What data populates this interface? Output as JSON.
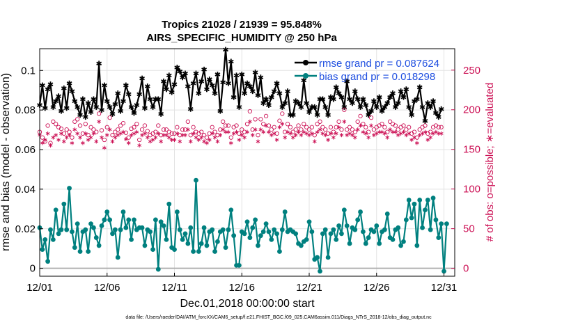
{
  "chart_data": {
    "type": "line",
    "title": "Tropics 21028 / 21939 = 95.848%",
    "subtitle": "AIRS_SPECIFIC_HUMIDITY @ 250 hPa",
    "xlabel": "Dec.01,2018 00:00:00 start",
    "ylabel": "rmse and bias (model - observation)",
    "ylabel_right": "# of obs: o=possible; ∗=evaluated",
    "xlim": [
      0,
      30.8
    ],
    "ylim": [
      -0.004,
      0.111
    ],
    "ylim_right": [
      -10,
      277
    ],
    "x_ticks": [
      0,
      5,
      10,
      15,
      20,
      25,
      30
    ],
    "x_tick_labels": [
      "12/01",
      "12/06",
      "12/11",
      "12/16",
      "12/21",
      "12/26",
      "12/31"
    ],
    "y_ticks": [
      0,
      0.02,
      0.04,
      0.06,
      0.08,
      0.1
    ],
    "y_tick_labels": [
      "0",
      "0.02",
      "0.04",
      "0.06",
      "0.08",
      "0.1"
    ],
    "y_ticks_right": [
      0,
      50,
      100,
      150,
      200,
      250
    ],
    "y_tick_labels_right": [
      "0",
      "50",
      "100",
      "150",
      "200",
      "250"
    ],
    "legend": [
      "rmse grand pr = 0.087624",
      "bias grand pr = 0.018298"
    ],
    "series": [
      {
        "name": "rmse",
        "color": "#000000",
        "values": [
          0.0825,
          0.0925,
          0.081,
          0.0905,
          0.093,
          0.0815,
          0.0845,
          0.087,
          0.0795,
          0.091,
          0.081,
          0.0935,
          0.0895,
          0.0845,
          0.0815,
          0.0775,
          0.0855,
          0.0765,
          0.0835,
          0.079,
          0.0855,
          0.0815,
          0.1035,
          0.08,
          0.0925,
          0.0845,
          0.0815,
          0.078,
          0.083,
          0.0885,
          0.0795,
          0.0845,
          0.0925,
          0.088,
          0.0815,
          0.0785,
          0.0825,
          0.088,
          0.096,
          0.081,
          0.092,
          0.0855,
          0.0815,
          0.0855,
          0.0855,
          0.078,
          0.0945,
          0.0905,
          0.0975,
          0.089,
          0.093,
          0.1015,
          0.0995,
          0.0965,
          0.0985,
          0.092,
          0.0805,
          0.0935,
          0.0985,
          0.0885,
          0.0945,
          0.1005,
          0.0905,
          0.0955,
          0.0925,
          0.0885,
          0.098,
          0.0795,
          0.094,
          0.1105,
          0.0935,
          0.1045,
          0.0865,
          0.0975,
          0.0815,
          0.098,
          0.0885,
          0.0935,
          0.092,
          0.0895,
          0.099,
          0.0875,
          0.0965,
          0.0835,
          0.0855,
          0.0825,
          0.0865,
          0.0895,
          0.0935,
          0.0885,
          0.0815,
          0.0835,
          0.0895,
          0.0775,
          0.0775,
          0.0845,
          0.0835,
          0.0815,
          0.095,
          0.0835,
          0.079,
          0.0815,
          0.0815,
          0.0775,
          0.0855,
          0.0855,
          0.0815,
          0.0775,
          0.0865,
          0.0855,
          0.0915,
          0.0885,
          0.0865,
          0.0815,
          0.0945,
          0.0855,
          0.0835,
          0.0895,
          0.0855,
          0.0815,
          0.0855,
          0.0825,
          0.0775,
          0.0795,
          0.0845,
          0.0815,
          0.0865,
          0.0795,
          0.0815,
          0.0835,
          0.0865,
          0.0885,
          0.0815,
          0.0835,
          0.0895,
          0.0865,
          0.0905,
          0.0815,
          0.0775,
          0.0845,
          0.0855,
          0.0915,
          0.0815,
          0.0745,
          0.0835,
          0.0815,
          0.0845,
          0.0785,
          0.0765,
          0.0805
        ],
        "marker": "asterisk"
      },
      {
        "name": "bias",
        "color": "#00807f",
        "values": [
          0.0205,
          0.0095,
          0.0145,
          0.0035,
          0.0195,
          0.0145,
          0.0295,
          0.0175,
          0.0195,
          0.0325,
          0.0195,
          0.0405,
          0.0185,
          0.0105,
          0.0225,
          0.0085,
          0.0185,
          0.0195,
          0.0085,
          0.0225,
          0.0205,
          0.0155,
          0.0115,
          0.0215,
          0.0245,
          0.0285,
          0.0245,
          0.0175,
          0.0195,
          0.0055,
          0.0195,
          0.0285,
          0.0205,
          0.0245,
          0.0145,
          0.0245,
          0.0195,
          0.0205,
          0.0205,
          0.0115,
          0.0195,
          0.0185,
          0.0095,
          0.0245,
          -0.0005,
          0.0235,
          0.0215,
          0.0145,
          0.0325,
          0.0105,
          0.0095,
          0.0285,
          0.0195,
          0.0145,
          0.0175,
          0.0125,
          0.0205,
          0.0085,
          0.0445,
          0.0085,
          0.0125,
          0.0205,
          0.0115,
          0.0185,
          0.0195,
          0.0085,
          0.0135,
          0.0185,
          0.0195,
          0.0105,
          0.0195,
          0.0295,
          0.0165,
          0.0015,
          0.0015,
          0.0185,
          0.0175,
          0.0235,
          0.0155,
          0.0205,
          0.0245,
          0.0115,
          0.0165,
          0.0185,
          0.0225,
          0.0185,
          0.0145,
          0.0195,
          0.0175,
          0.0085,
          0.0195,
          0.0285,
          0.0185,
          0.0195,
          0.0185,
          0.0175,
          0.0125,
          0.0115,
          0.0135,
          0.0145,
          0.0235,
          0.0185,
          0.0045,
          0.0055,
          -0.0015,
          0.0175,
          0.0195,
          0.0055,
          0.0175,
          0.0195,
          0.0145,
          0.0215,
          0.0175,
          0.0295,
          0.0215,
          0.0125,
          0.0205,
          0.0195,
          0.0245,
          0.0285,
          0.0185,
          0.0125,
          0.0155,
          0.0195,
          0.0185,
          0.0215,
          0.0125,
          0.0185,
          0.0195,
          0.0275,
          0.0155,
          0.0145,
          0.0195,
          0.0205,
          0.0115,
          0.0135,
          0.0245,
          0.0345,
          0.0255,
          0.0325,
          0.0115,
          0.0345,
          0.0205,
          0.0295,
          0.0345,
          0.0195,
          0.0355,
          0.0245,
          0.0155,
          0.0225,
          -0.0015,
          0.0225
        ],
        "marker": "circle"
      },
      {
        "name": "possible",
        "color": "#cc1155",
        "axis": "right",
        "values": [
          172,
          165,
          160,
          180,
          158,
          185,
          182,
          178,
          176,
          170,
          175,
          172,
          165,
          185,
          188,
          180,
          170,
          182,
          168,
          178,
          175,
          172,
          195,
          174,
          162,
          178,
          190,
          168,
          172,
          175,
          180,
          183,
          171,
          165,
          176,
          178,
          182,
          162,
          175,
          180,
          173,
          168,
          170,
          172,
          180,
          168,
          175,
          175,
          172,
          170,
          170,
          178,
          168,
          175,
          175,
          185,
          168,
          178,
          172,
          170,
          172,
          168,
          165,
          170,
          178,
          172,
          168,
          175,
          185,
          180,
          180,
          165,
          178,
          180,
          170,
          175,
          172,
          182,
          198,
          175,
          188,
          168,
          188,
          182,
          192,
          180,
          175,
          178,
          170,
          186,
          195,
          172,
          182,
          178,
          172,
          175,
          180,
          175,
          182,
          178,
          175,
          178,
          168,
          182,
          185,
          178,
          175,
          170,
          178,
          172,
          178,
          185,
          175,
          200,
          175,
          178,
          175,
          172,
          185,
          192,
          182,
          178,
          172,
          190,
          175,
          178,
          180,
          182,
          178,
          172,
          185,
          182,
          180,
          175,
          178,
          180,
          175,
          178,
          170,
          172,
          165,
          175,
          178,
          180,
          170,
          172,
          178,
          180,
          178,
          178
        ],
        "marker": "o"
      },
      {
        "name": "evaluated",
        "color": "#cc1155",
        "axis": "right",
        "values": [
          168,
          158,
          162,
          170,
          155,
          165,
          168,
          162,
          170,
          160,
          165,
          168,
          158,
          175,
          170,
          165,
          158,
          170,
          162,
          165,
          170,
          160,
          185,
          165,
          152,
          168,
          175,
          160,
          165,
          168,
          170,
          172,
          163,
          158,
          168,
          170,
          172,
          155,
          168,
          170,
          165,
          160,
          162,
          165,
          170,
          160,
          168,
          168,
          165,
          162,
          162,
          170,
          160,
          168,
          168,
          175,
          160,
          170,
          165,
          162,
          165,
          160,
          158,
          162,
          170,
          165,
          160,
          168,
          175,
          172,
          172,
          158,
          170,
          172,
          162,
          168,
          165,
          172,
          185,
          168,
          175,
          160,
          175,
          172,
          180,
          172,
          168,
          170,
          162,
          178,
          182,
          165,
          172,
          170,
          165,
          168,
          172,
          168,
          172,
          170,
          168,
          170,
          160,
          172,
          175,
          170,
          168,
          162,
          170,
          165,
          170,
          178,
          168,
          185,
          168,
          170,
          168,
          165,
          175,
          180,
          172,
          170,
          165,
          180,
          168,
          170,
          172,
          172,
          170,
          165,
          175,
          172,
          172,
          168,
          170,
          172,
          168,
          170,
          162,
          165,
          158,
          168,
          170,
          172,
          162,
          165,
          170,
          172,
          170,
          170
        ],
        "marker": "asterisk"
      }
    ],
    "annotations": [
      "data file: /Users/raeder/DAI/ATM_forcXX/CAM6_setup/f.e21.FHIST_BGC.f09_025.CAM6assim.011/Diags_NTrS_2018-12/obs_diag_output.nc"
    ]
  }
}
